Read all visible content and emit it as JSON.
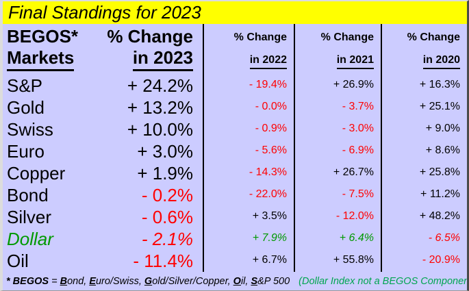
{
  "title": "Final Standings for 2023",
  "colors": {
    "background": "#CCCCFF",
    "title_bg": "#FFFF00",
    "negative": "#FF0000",
    "positive": "#000000",
    "dollar_green": "#009900",
    "note_green": "#00A550",
    "grid_line": "#000000"
  },
  "header": {
    "col1_line1": "BEGOS*",
    "col1_line2": "Markets",
    "col2_line1": "% Change",
    "col2_line2": "in 2023",
    "col3_line1": "% Change",
    "col3_line2": "in 2022",
    "col4_line1": "% Change",
    "col4_line2": "in 2021",
    "col5_line1": "% Change",
    "col5_line2": "in 2020"
  },
  "rows": [
    {
      "market": "S&P",
      "market_color": "#000000",
      "values": [
        {
          "text": "+ 24.2%",
          "color": "#000000"
        },
        {
          "text": "- 19.4%",
          "color": "#FF0000"
        },
        {
          "text": "+ 26.9%",
          "color": "#000000"
        },
        {
          "text": "+ 16.3%",
          "color": "#000000"
        }
      ]
    },
    {
      "market": "Gold",
      "market_color": "#000000",
      "values": [
        {
          "text": "+ 13.2%",
          "color": "#000000"
        },
        {
          "text": "- 0.0%",
          "color": "#FF0000"
        },
        {
          "text": "- 3.7%",
          "color": "#FF0000"
        },
        {
          "text": "+ 25.1%",
          "color": "#000000"
        }
      ]
    },
    {
      "market": "Swiss",
      "market_color": "#000000",
      "values": [
        {
          "text": "+ 10.0%",
          "color": "#000000"
        },
        {
          "text": "- 0.9%",
          "color": "#FF0000"
        },
        {
          "text": "- 3.0%",
          "color": "#FF0000"
        },
        {
          "text": "+ 9.0%",
          "color": "#000000"
        }
      ]
    },
    {
      "market": "Euro",
      "market_color": "#000000",
      "values": [
        {
          "text": "+ 3.0%",
          "color": "#000000"
        },
        {
          "text": "- 5.6%",
          "color": "#FF0000"
        },
        {
          "text": "- 6.9%",
          "color": "#FF0000"
        },
        {
          "text": "+ 8.6%",
          "color": "#000000"
        }
      ]
    },
    {
      "market": "Copper",
      "market_color": "#000000",
      "values": [
        {
          "text": "+ 1.9%",
          "color": "#000000"
        },
        {
          "text": "- 14.3%",
          "color": "#FF0000"
        },
        {
          "text": "+ 26.7%",
          "color": "#000000"
        },
        {
          "text": "+ 25.8%",
          "color": "#000000"
        }
      ]
    },
    {
      "market": "Bond",
      "market_color": "#000000",
      "values": [
        {
          "text": "- 0.2%",
          "color": "#FF0000"
        },
        {
          "text": "- 22.0%",
          "color": "#FF0000"
        },
        {
          "text": "- 7.5%",
          "color": "#FF0000"
        },
        {
          "text": "+ 11.2%",
          "color": "#000000"
        }
      ]
    },
    {
      "market": "Silver",
      "market_color": "#000000",
      "values": [
        {
          "text": "- 0.6%",
          "color": "#FF0000"
        },
        {
          "text": "+ 3.5%",
          "color": "#000000"
        },
        {
          "text": "- 12.0%",
          "color": "#FF0000"
        },
        {
          "text": "+ 48.2%",
          "color": "#000000"
        }
      ]
    },
    {
      "market": "Dollar",
      "market_color": "#009900",
      "values": [
        {
          "text": "- 2.1%",
          "color": "#FF0000"
        },
        {
          "text": "+ 7.9%",
          "color": "#009900"
        },
        {
          "text": "+ 6.4%",
          "color": "#009900"
        },
        {
          "text": "- 6.5%",
          "color": "#FF0000"
        }
      ]
    },
    {
      "market": "Oil",
      "market_color": "#000000",
      "values": [
        {
          "text": "- 11.4%",
          "color": "#FF0000"
        },
        {
          "text": "+ 6.7%",
          "color": "#000000"
        },
        {
          "text": "+ 55.8%",
          "color": "#000000"
        },
        {
          "text": "- 20.9%",
          "color": "#FF0000"
        }
      ]
    }
  ],
  "footnote": {
    "prefix": "* BEGOS",
    "equals": " = ",
    "parts": [
      {
        "initial": "B",
        "rest": "ond, "
      },
      {
        "initial": "E",
        "rest": "uro/Swiss, "
      },
      {
        "initial": "G",
        "rest": "old/Silver/Copper, "
      },
      {
        "initial": "O",
        "rest": "il, "
      },
      {
        "initial": "S",
        "rest": "&P 500"
      }
    ],
    "note": "(Dollar Index not a BEGOS Component)",
    "note_color": "#00A550"
  },
  "chart_data": {
    "type": "table",
    "title": "Final Standings for 2023",
    "categories": [
      "S&P",
      "Gold",
      "Swiss",
      "Euro",
      "Copper",
      "Bond",
      "Silver",
      "Dollar",
      "Oil"
    ],
    "series": [
      {
        "name": "% Change in 2023",
        "values": [
          24.2,
          13.2,
          10.0,
          3.0,
          1.9,
          -0.2,
          -0.6,
          -2.1,
          -11.4
        ]
      },
      {
        "name": "% Change in 2022",
        "values": [
          -19.4,
          -0.0,
          -0.9,
          -5.6,
          -14.3,
          -22.0,
          3.5,
          7.9,
          6.7
        ]
      },
      {
        "name": "% Change in 2021",
        "values": [
          26.9,
          -3.7,
          -3.0,
          -6.9,
          26.7,
          -7.5,
          -12.0,
          6.4,
          55.8
        ]
      },
      {
        "name": "% Change in 2020",
        "values": [
          16.3,
          25.1,
          9.0,
          8.6,
          25.8,
          11.2,
          48.2,
          -6.5,
          -20.9
        ]
      }
    ],
    "footnote": "* BEGOS = Bond, Euro/Swiss, Gold/Silver/Copper, Oil, S&P 500 (Dollar Index not a BEGOS Component)"
  }
}
